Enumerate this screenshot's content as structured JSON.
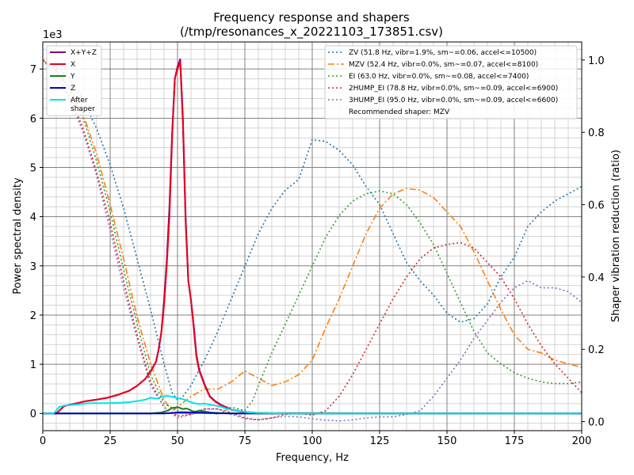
{
  "chart_data": {
    "type": "line",
    "title": "Frequency response and shapers",
    "subtitle": "(/tmp/resonances_x_20221103_173851.csv)",
    "xlabel": "Frequency, Hz",
    "ylabel": "Power spectral density",
    "y2label": "Shaper vibration reduction (ratio)",
    "xlim": [
      0,
      200
    ],
    "ylim": [
      -350,
      7550
    ],
    "y2lim": [
      -0.025,
      1.05
    ],
    "y_scale_label": "1e3",
    "x_ticks": [
      0,
      25,
      50,
      75,
      100,
      125,
      150,
      175,
      200
    ],
    "y_ticks": [
      0,
      1000,
      2000,
      3000,
      4000,
      5000,
      6000,
      7000
    ],
    "y_tick_labels": [
      "0",
      "1",
      "2",
      "3",
      "4",
      "5",
      "6",
      "7"
    ],
    "y2_ticks": [
      0.0,
      0.2,
      0.4,
      0.6,
      0.8,
      1.0
    ],
    "y2_tick_labels": [
      "0.0",
      "0.2",
      "0.4",
      "0.6",
      "0.8",
      "1.0"
    ],
    "grid": true,
    "legend_left_position": "top-left",
    "legend_right_position": "top-right",
    "psd_series": [
      {
        "name": "X+Y+Z",
        "color": "#800080",
        "width": 2,
        "x": [
          0,
          5,
          8,
          12,
          16,
          20,
          24,
          28,
          32,
          35,
          38,
          40,
          42,
          43,
          44,
          45,
          46,
          47,
          48,
          49,
          50,
          51,
          52,
          53,
          54,
          55,
          56,
          57,
          58,
          60,
          62,
          64,
          66,
          68,
          70,
          75,
          80,
          85,
          90,
          200
        ],
        "y": [
          0,
          0,
          150,
          200,
          250,
          280,
          320,
          380,
          460,
          560,
          700,
          850,
          1050,
          1300,
          1650,
          2300,
          3100,
          4200,
          5700,
          6800,
          7050,
          7200,
          6000,
          4000,
          2700,
          2300,
          1800,
          1200,
          900,
          600,
          350,
          250,
          180,
          130,
          80,
          30,
          10,
          5,
          5,
          0
        ]
      },
      {
        "name": "X",
        "color": "#e5001c",
        "width": 2,
        "x": [
          0,
          5,
          8,
          12,
          16,
          20,
          24,
          28,
          32,
          35,
          38,
          40,
          42,
          43,
          44,
          45,
          46,
          47,
          48,
          49,
          50,
          51,
          52,
          53,
          54,
          55,
          56,
          57,
          58,
          60,
          62,
          64,
          66,
          68,
          70,
          75,
          80,
          85,
          90,
          200
        ],
        "y": [
          0,
          0,
          150,
          200,
          250,
          280,
          320,
          380,
          460,
          560,
          700,
          850,
          1050,
          1300,
          1650,
          2200,
          3000,
          4000,
          5600,
          6800,
          7000,
          7150,
          5900,
          3900,
          2700,
          2300,
          1750,
          1150,
          880,
          580,
          340,
          240,
          170,
          120,
          75,
          25,
          8,
          4,
          4,
          0
        ]
      },
      {
        "name": "Y",
        "color": "#1a7f1a",
        "width": 2,
        "x": [
          0,
          40,
          44,
          46,
          47,
          48,
          49,
          50,
          51,
          52,
          53,
          54,
          55,
          56,
          57,
          58,
          60,
          62,
          65,
          70,
          200
        ],
        "y": [
          0,
          0,
          20,
          50,
          80,
          110,
          120,
          130,
          110,
          90,
          100,
          90,
          60,
          40,
          40,
          60,
          40,
          20,
          10,
          0,
          0
        ]
      },
      {
        "name": "Z",
        "color": "#0000cc",
        "width": 2,
        "x": [
          0,
          45,
          48,
          50,
          52,
          54,
          56,
          58,
          60,
          62,
          65,
          70,
          200
        ],
        "y": [
          0,
          0,
          10,
          20,
          25,
          22,
          15,
          18,
          12,
          8,
          4,
          0,
          0
        ]
      },
      {
        "name": "After\nshaper",
        "color": "#00e5e5",
        "width": 2,
        "x": [
          0,
          4,
          5,
          6,
          8,
          10,
          12,
          14,
          16,
          18,
          20,
          24,
          28,
          32,
          36,
          38,
          40,
          42,
          44,
          46,
          48,
          50,
          52,
          54,
          56,
          58,
          60,
          62,
          64,
          66,
          68,
          70,
          72,
          74,
          76,
          78,
          80,
          90,
          200
        ],
        "y": [
          0,
          0,
          60,
          130,
          160,
          170,
          180,
          190,
          200,
          210,
          210,
          210,
          215,
          230,
          260,
          280,
          320,
          300,
          330,
          360,
          340,
          310,
          290,
          250,
          210,
          190,
          200,
          180,
          160,
          140,
          100,
          80,
          60,
          40,
          25,
          15,
          10,
          0,
          0
        ]
      }
    ],
    "shaper_series": [
      {
        "name": "ZV (51.8 Hz, vibr=1.9%, sm~=0.06, accel<=10500)",
        "color": "#1f77b4",
        "dash": "2,3",
        "x": [
          0,
          5,
          10,
          15,
          20,
          25,
          30,
          35,
          40,
          45,
          48,
          50,
          52,
          55,
          60,
          65,
          70,
          75,
          80,
          85,
          90,
          95,
          100,
          105,
          110,
          115,
          120,
          125,
          130,
          135,
          140,
          145,
          150,
          155,
          160,
          165,
          170,
          175,
          180,
          185,
          190,
          195,
          200
        ],
        "y": [
          1.0,
          0.98,
          0.95,
          0.89,
          0.81,
          0.71,
          0.59,
          0.45,
          0.31,
          0.16,
          0.08,
          0.06,
          0.07,
          0.1,
          0.17,
          0.25,
          0.34,
          0.43,
          0.52,
          0.59,
          0.64,
          0.67,
          0.78,
          0.775,
          0.75,
          0.71,
          0.65,
          0.6,
          0.52,
          0.44,
          0.39,
          0.35,
          0.3,
          0.275,
          0.285,
          0.325,
          0.4,
          0.455,
          0.54,
          0.58,
          0.61,
          0.63,
          0.65
        ]
      },
      {
        "name": "MZV (52.4 Hz, vibr=0.0%, sm~=0.07, accel<=8100)",
        "color": "#ff7f0e",
        "dash": "8,3,2,3",
        "x": [
          0,
          5,
          10,
          15,
          20,
          25,
          30,
          35,
          40,
          45,
          48,
          50,
          55,
          60,
          65,
          70,
          75,
          80,
          85,
          90,
          95,
          100,
          105,
          110,
          115,
          120,
          125,
          130,
          135,
          140,
          145,
          150,
          155,
          160,
          165,
          170,
          175,
          180,
          185,
          190,
          195,
          200
        ],
        "y": [
          1.0,
          0.97,
          0.92,
          0.85,
          0.74,
          0.6,
          0.45,
          0.29,
          0.16,
          0.06,
          0.03,
          0.04,
          0.07,
          0.09,
          0.09,
          0.11,
          0.14,
          0.12,
          0.1,
          0.11,
          0.13,
          0.17,
          0.26,
          0.34,
          0.43,
          0.52,
          0.59,
          0.63,
          0.645,
          0.64,
          0.62,
          0.58,
          0.54,
          0.47,
          0.39,
          0.31,
          0.24,
          0.2,
          0.19,
          0.17,
          0.16,
          0.15
        ]
      },
      {
        "name": "EI (63.0 Hz, vibr=0.0%, sm~=0.08, accel<=7400)",
        "color": "#2ca02c",
        "dash": "2,3",
        "x": [
          0,
          5,
          10,
          15,
          20,
          25,
          30,
          35,
          40,
          45,
          50,
          55,
          60,
          65,
          70,
          75,
          78,
          80,
          85,
          90,
          95,
          100,
          105,
          110,
          115,
          120,
          125,
          130,
          135,
          140,
          145,
          150,
          155,
          160,
          165,
          170,
          175,
          180,
          185,
          190,
          195,
          200
        ],
        "y": [
          1.0,
          0.97,
          0.92,
          0.84,
          0.72,
          0.58,
          0.42,
          0.27,
          0.13,
          0.05,
          0.03,
          0.02,
          0.03,
          0.02,
          0.04,
          0.03,
          0.06,
          0.1,
          0.19,
          0.27,
          0.35,
          0.43,
          0.51,
          0.57,
          0.61,
          0.63,
          0.638,
          0.63,
          0.6,
          0.55,
          0.49,
          0.41,
          0.33,
          0.25,
          0.19,
          0.16,
          0.135,
          0.12,
          0.11,
          0.105,
          0.105,
          0.11
        ]
      },
      {
        "name": "2HUMP_EI (78.8 Hz, vibr=0.0%, sm~=0.09, accel<=6900)",
        "color": "#d62728",
        "dash": "2,3",
        "x": [
          0,
          5,
          10,
          15,
          20,
          25,
          30,
          35,
          40,
          45,
          50,
          55,
          60,
          65,
          70,
          75,
          80,
          85,
          90,
          95,
          100,
          105,
          110,
          115,
          120,
          125,
          130,
          135,
          140,
          145,
          150,
          155,
          160,
          165,
          170,
          175,
          180,
          185,
          190,
          195,
          200
        ],
        "y": [
          1.0,
          0.96,
          0.9,
          0.81,
          0.69,
          0.55,
          0.39,
          0.24,
          0.11,
          0.04,
          0.015,
          0.02,
          0.035,
          0.035,
          0.025,
          0.01,
          0.005,
          0.01,
          0.02,
          0.023,
          0.018,
          0.03,
          0.07,
          0.13,
          0.2,
          0.27,
          0.34,
          0.4,
          0.45,
          0.48,
          0.49,
          0.495,
          0.48,
          0.44,
          0.4,
          0.34,
          0.27,
          0.21,
          0.16,
          0.12,
          0.08
        ]
      },
      {
        "name": "3HUMP_EI (95.0 Hz, vibr=0.0%, sm~=0.09, accel<=6600)",
        "color": "#9467bd",
        "dash": "2,3",
        "x": [
          0,
          5,
          10,
          15,
          20,
          25,
          30,
          35,
          40,
          45,
          50,
          55,
          60,
          65,
          70,
          75,
          80,
          85,
          90,
          95,
          100,
          105,
          110,
          115,
          120,
          125,
          130,
          135,
          140,
          145,
          150,
          155,
          160,
          165,
          170,
          175,
          180,
          185,
          190,
          195,
          200
        ],
        "y": [
          1.0,
          0.96,
          0.89,
          0.8,
          0.68,
          0.53,
          0.37,
          0.23,
          0.1,
          0.04,
          0.01,
          0.02,
          0.035,
          0.035,
          0.02,
          0.008,
          0.005,
          0.01,
          0.015,
          0.013,
          0.008,
          0.004,
          0.002,
          0.005,
          0.01,
          0.013,
          0.013,
          0.02,
          0.03,
          0.07,
          0.12,
          0.17,
          0.23,
          0.28,
          0.33,
          0.37,
          0.39,
          0.37,
          0.37,
          0.36,
          0.33
        ]
      }
    ],
    "recommended_label": "Recommended shaper: MZV"
  }
}
